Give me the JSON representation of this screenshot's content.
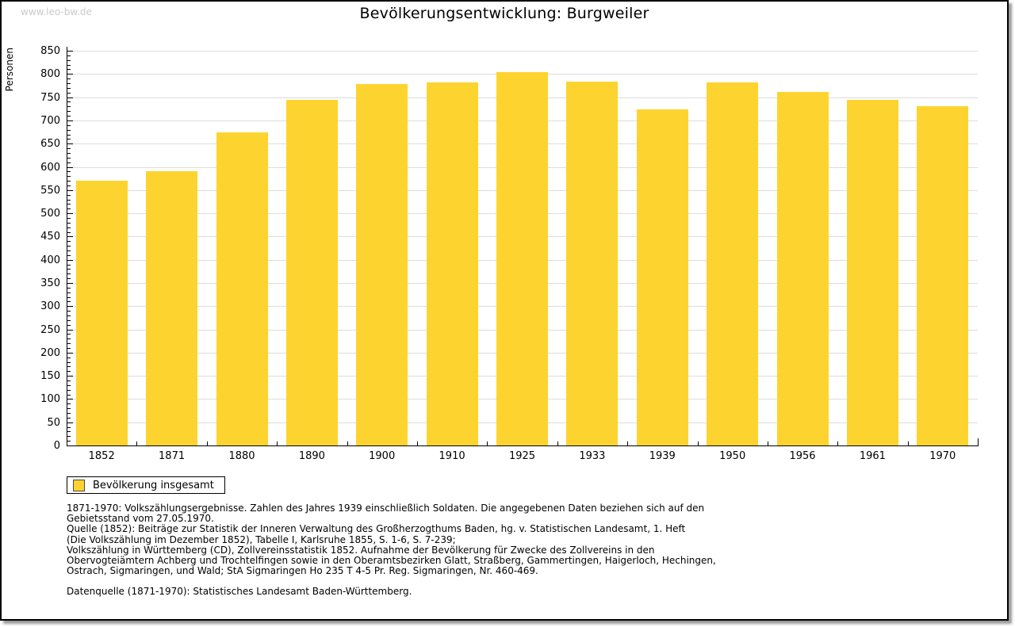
{
  "page": {
    "watermark": "www.leo-bw.de",
    "title": "Bevölkerungsentwicklung: Burgweiler"
  },
  "chart_data": {
    "type": "bar",
    "title": "Bevölkerungsentwicklung: Burgweiler",
    "xlabel": "",
    "ylabel": "Personen",
    "categories": [
      "1852",
      "1871",
      "1880",
      "1890",
      "1900",
      "1910",
      "1925",
      "1933",
      "1939",
      "1950",
      "1956",
      "1961",
      "1970"
    ],
    "values": [
      570,
      590,
      675,
      745,
      778,
      782,
      804,
      783,
      723,
      781,
      762,
      745,
      731
    ],
    "ylim": [
      0,
      850
    ],
    "ytick_major": 50,
    "ytick_minor": 10,
    "grid": true,
    "legend_position": "bottom-left",
    "legend_entries": [
      "Bevölkerung insgesamt"
    ],
    "bar_color": "#FDD42F",
    "gridline_color": "#dddddd",
    "axis_color": "#000000"
  },
  "legend": {
    "label": "Bevölkerung insgesamt",
    "swatch_color": "#FDD42F"
  },
  "footnotes": {
    "lines": [
      "1871-1970: Volkszählungsergebnisse. Zahlen des Jahres 1939 einschließlich Soldaten. Die angegebenen Daten beziehen sich auf den",
      "Gebietsstand vom 27.05.1970.",
      "Quelle (1852): Beiträge zur Statistik der Inneren Verwaltung des Großherzogthums Baden, hg. v. Statistischen Landesamt, 1. Heft",
      "(Die Volkszählung im Dezember 1852), Tabelle I, Karlsruhe 1855, S. 1-6, S. 7-239;",
      "Volkszählung in Württemberg (CD), Zollvereinsstatistik 1852. Aufnahme der Bevölkerung für Zwecke des Zollvereins in den",
      "Obervogteiämtern Achberg und Trochtelfingen sowie in den Oberamtsbezirken Glatt, Straßberg, Gammertingen, Haigerloch, Hechingen,",
      "Ostrach, Sigmaringen, und Wald; StA Sigmaringen Ho 235 T 4-5 Pr. Reg. Sigmaringen, Nr. 460-469."
    ],
    "datasource": "Datenquelle (1871-1970): Statistisches Landesamt Baden-Württemberg."
  }
}
